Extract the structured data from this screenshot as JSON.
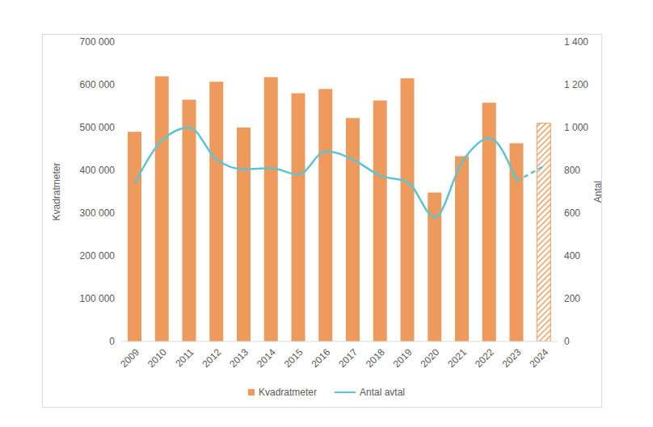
{
  "chart_data": {
    "type": "bar_line",
    "legend": "bottom",
    "grid": false,
    "categories": [
      "2009",
      "2010",
      "2011",
      "2012",
      "2013",
      "2014",
      "2015",
      "2016",
      "2017",
      "2018",
      "2019",
      "2020",
      "2021",
      "2022",
      "2023",
      "2024"
    ],
    "y_label": "Kvadratmeter",
    "y2_label": "Antal",
    "ylim": [
      0,
      700000
    ],
    "yticks": [
      0,
      {
        "value": 100000,
        "label": "100 000"
      },
      {
        "value": 200000,
        "label": "200 000"
      },
      {
        "value": 300000,
        "label": "300 000"
      },
      {
        "value": 400000,
        "label": "400 000"
      },
      {
        "value": 500000,
        "label": "500 000"
      },
      {
        "value": 600000,
        "label": "600 000"
      },
      {
        "value": 700000,
        "label": "700 000"
      }
    ],
    "y2lim": [
      0,
      1400
    ],
    "y2ticks": [
      0,
      200,
      400,
      600,
      800,
      {
        "value": 1000,
        "label": "1 000"
      },
      {
        "value": 1200,
        "label": "1 200"
      },
      {
        "value": 1400,
        "label": "1 400"
      }
    ],
    "series": [
      {
        "name": "Kvadratmeter",
        "type": "bar",
        "color": "#ED9A5C",
        "values": [
          490000,
          620000,
          565000,
          607000,
          500000,
          618000,
          580000,
          590000,
          522000,
          563000,
          615000,
          348000,
          433000,
          558000,
          463000,
          510000
        ]
      },
      {
        "name": "Antal avtal",
        "type": "line",
        "axis": "y2",
        "color": "#5BC5D5",
        "line_style": "solid",
        "values": [
          740,
          940,
          1000,
          850,
          805,
          810,
          780,
          890,
          850,
          775,
          745,
          580,
          840,
          950,
          750,
          820
        ]
      }
    ]
  }
}
